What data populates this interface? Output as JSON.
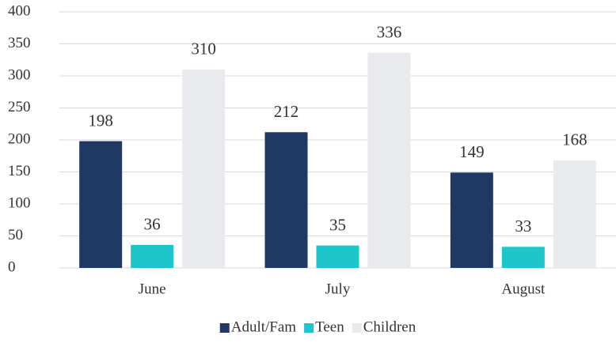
{
  "chart_data": {
    "type": "bar",
    "categories": [
      "June",
      "July",
      "August"
    ],
    "series": [
      {
        "name": "Adult/Fam",
        "color": "#1f3864",
        "values": [
          198,
          212,
          149
        ]
      },
      {
        "name": "Teen",
        "color": "#1cc6c9",
        "values": [
          36,
          35,
          33
        ]
      },
      {
        "name": "Children",
        "color": "#e9eaee",
        "values": [
          310,
          336,
          168
        ]
      }
    ],
    "ylim": [
      0,
      400
    ],
    "yticks": [
      0,
      50,
      100,
      150,
      200,
      250,
      300,
      350,
      400
    ],
    "grid": true,
    "legend": "bottom"
  }
}
